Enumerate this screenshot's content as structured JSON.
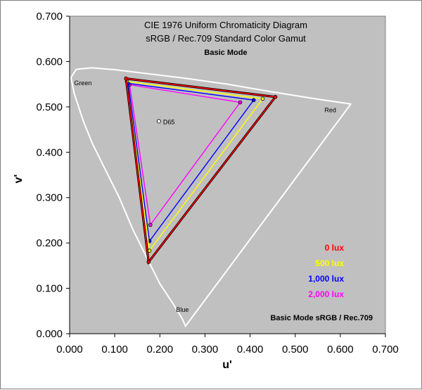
{
  "chart_data": {
    "type": "scatter",
    "title": "CIE 1976 Uniform Chromaticity Diagram",
    "subtitle": "sRGB / Rec.709 Standard Color Gamut",
    "mode_label": "Basic Mode",
    "footer_label": "Basic Mode  sRGB / Rec.709",
    "xlabel": "u'",
    "ylabel": "v'",
    "xlim": [
      0.0,
      0.7
    ],
    "ylim": [
      0.0,
      0.7
    ],
    "x_ticks": [
      "0.000",
      "0.100",
      "0.200",
      "0.300",
      "0.400",
      "0.500",
      "0.600",
      "0.700"
    ],
    "y_ticks": [
      "0.000",
      "0.100",
      "0.200",
      "0.300",
      "0.400",
      "0.500",
      "0.600",
      "0.700"
    ],
    "grid": false,
    "plot_background": "#c0c0c0",
    "primary_labels": [
      {
        "text": "Green",
        "u": 0.01,
        "v": 0.548
      },
      {
        "text": "Red",
        "u": 0.565,
        "v": 0.488
      },
      {
        "text": "Blue",
        "u": 0.236,
        "v": 0.048
      }
    ],
    "white_point": {
      "name": "D65",
      "u": 0.1978,
      "v": 0.4683
    },
    "spectral_locus": [
      [
        0.2568,
        0.0165
      ],
      [
        0.25,
        0.032
      ],
      [
        0.23,
        0.065
      ],
      [
        0.2,
        0.11
      ],
      [
        0.17,
        0.17
      ],
      [
        0.14,
        0.23
      ],
      [
        0.11,
        0.3
      ],
      [
        0.08,
        0.36
      ],
      [
        0.05,
        0.42
      ],
      [
        0.03,
        0.47
      ],
      [
        0.01,
        0.53
      ],
      [
        0.003,
        0.565
      ],
      [
        0.015,
        0.583
      ],
      [
        0.05,
        0.586
      ],
      [
        0.1,
        0.582
      ],
      [
        0.15,
        0.576
      ],
      [
        0.25,
        0.564
      ],
      [
        0.35,
        0.55
      ],
      [
        0.45,
        0.533
      ],
      [
        0.55,
        0.517
      ],
      [
        0.6234,
        0.5065
      ]
    ],
    "series": [
      {
        "name": "0 lux",
        "color": "#ff0000",
        "points": [
          [
            0.125,
            0.5625
          ],
          [
            0.456,
            0.522
          ],
          [
            0.175,
            0.158
          ]
        ]
      },
      {
        "name": "500 lux",
        "color": "#ffff00",
        "points": [
          [
            0.127,
            0.556
          ],
          [
            0.428,
            0.518
          ],
          [
            0.177,
            0.183
          ]
        ]
      },
      {
        "name": "1,000 lux",
        "color": "#0000ff",
        "points": [
          [
            0.13,
            0.552
          ],
          [
            0.408,
            0.515
          ],
          [
            0.177,
            0.204
          ]
        ]
      },
      {
        "name": "2,000 lux",
        "color": "#ff00ff",
        "points": [
          [
            0.133,
            0.549
          ],
          [
            0.378,
            0.51
          ],
          [
            0.179,
            0.24
          ]
        ]
      }
    ]
  }
}
